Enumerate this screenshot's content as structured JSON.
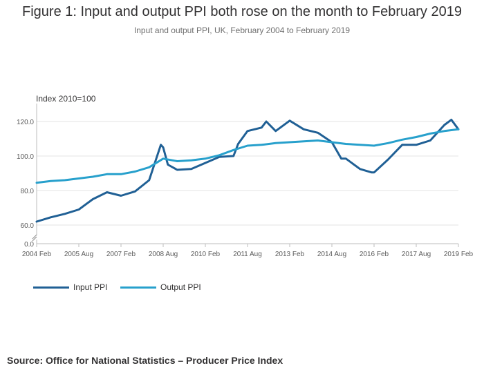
{
  "title": "Figure 1: Input and output PPI both rose on the month to February 2019",
  "subtitle": "Input and output PPI, UK, February 2004 to February 2019",
  "source": "Source: Office for National Statistics – Producer Price Index",
  "chart_data": {
    "type": "line",
    "ylabel": "Index 2010=100",
    "ylim": [
      0,
      130
    ],
    "y_axis_break": [
      0,
      55
    ],
    "yticks": [
      0,
      60,
      80,
      100,
      120
    ],
    "ytick_labels": [
      "0.0",
      "60.0",
      "80.0",
      "100.0",
      "120.0"
    ],
    "x_range": [
      "2004 Feb",
      "2019 Feb"
    ],
    "xticks": [
      "2004 Feb",
      "2005 Aug",
      "2007 Feb",
      "2008 Aug",
      "2010 Feb",
      "2011 Aug",
      "2013 Feb",
      "2014 Aug",
      "2016 Feb",
      "2017 Aug",
      "2019 Feb"
    ],
    "grid": true,
    "legend_position": "bottom-left",
    "series": [
      {
        "name": "Input PPI",
        "color": "#206095",
        "x": [
          "2004 Feb",
          "2004 Aug",
          "2005 Feb",
          "2005 Aug",
          "2006 Feb",
          "2006 Aug",
          "2007 Feb",
          "2007 Aug",
          "2008 Feb",
          "2008 Jul",
          "2008 Aug",
          "2008 Oct",
          "2009 Feb",
          "2009 Aug",
          "2010 Feb",
          "2010 Aug",
          "2011 Feb",
          "2011 Apr",
          "2011 Aug",
          "2012 Feb",
          "2012 Apr",
          "2012 Aug",
          "2013 Feb",
          "2013 Aug",
          "2014 Feb",
          "2014 Aug",
          "2014 Dec",
          "2015 Feb",
          "2015 Aug",
          "2016 Jan",
          "2016 Feb",
          "2016 Aug",
          "2017 Feb",
          "2017 Aug",
          "2018 Feb",
          "2018 Aug",
          "2018 Nov",
          "2019 Feb"
        ],
        "values": [
          62.0,
          64.5,
          66.5,
          69.0,
          75.0,
          79.0,
          77.0,
          79.5,
          86.0,
          106.5,
          105.0,
          95.0,
          92.0,
          92.5,
          96.0,
          99.5,
          100.0,
          107.0,
          114.5,
          116.5,
          120.0,
          114.5,
          120.5,
          115.5,
          113.5,
          108.0,
          98.5,
          98.5,
          92.5,
          90.5,
          90.5,
          98.0,
          106.5,
          106.5,
          109.0,
          118.0,
          121.0,
          115.5
        ]
      },
      {
        "name": "Output PPI",
        "color": "#27a0cc",
        "x": [
          "2004 Feb",
          "2004 Aug",
          "2005 Feb",
          "2005 Aug",
          "2006 Feb",
          "2006 Aug",
          "2007 Feb",
          "2007 Aug",
          "2008 Feb",
          "2008 Aug",
          "2009 Feb",
          "2009 Aug",
          "2010 Feb",
          "2010 Aug",
          "2011 Feb",
          "2011 Aug",
          "2012 Feb",
          "2012 Aug",
          "2013 Feb",
          "2013 Aug",
          "2014 Feb",
          "2014 Aug",
          "2015 Feb",
          "2015 Aug",
          "2016 Feb",
          "2016 Aug",
          "2017 Feb",
          "2017 Aug",
          "2018 Feb",
          "2018 Aug",
          "2019 Feb"
        ],
        "values": [
          84.5,
          85.5,
          86.0,
          87.0,
          88.0,
          89.5,
          89.5,
          91.0,
          93.5,
          98.5,
          97.0,
          97.5,
          98.5,
          100.5,
          103.5,
          106.0,
          106.5,
          107.5,
          108.0,
          108.5,
          109.0,
          108.0,
          107.0,
          106.5,
          106.0,
          107.5,
          109.5,
          111.0,
          113.0,
          114.5,
          115.5
        ]
      }
    ]
  }
}
